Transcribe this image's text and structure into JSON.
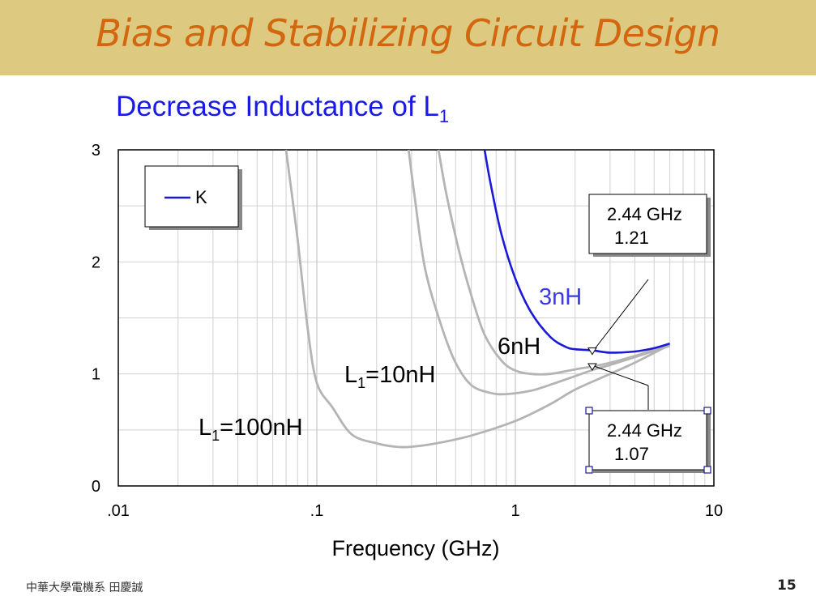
{
  "slide": {
    "title": "Bias and Stabilizing Circuit Design",
    "subtitle_main": "Decrease Inductance of L",
    "subtitle_sub": "1",
    "footer_left": "中華大學電機系 田慶誠",
    "page_number": "15"
  },
  "chart_data": {
    "type": "line",
    "xscale": "log",
    "xlim": [
      0.01,
      10
    ],
    "ylim": [
      0,
      3
    ],
    "xlabel": "Frequency (GHz)",
    "ylabel": "",
    "x_ticks": [
      0.01,
      0.1,
      1,
      10
    ],
    "x_tick_labels": [
      ".01",
      ".1",
      "1",
      "10"
    ],
    "y_ticks": [
      0,
      1,
      2,
      3
    ],
    "y_tick_labels": [
      "0",
      "1",
      "2",
      "3"
    ],
    "grid": true,
    "legend": {
      "position": "top-left",
      "entries": [
        "K"
      ]
    },
    "series": [
      {
        "name": "L1=100nH",
        "label_main": "L",
        "label_sub": "1",
        "label_rest": "=100nH",
        "color": "#b4b4b4",
        "label_color": "#000000",
        "points": [
          [
            0.07,
            3.0
          ],
          [
            0.08,
            2.2
          ],
          [
            0.09,
            1.4
          ],
          [
            0.1,
            0.92
          ],
          [
            0.12,
            0.7
          ],
          [
            0.15,
            0.46
          ],
          [
            0.2,
            0.38
          ],
          [
            0.25,
            0.35
          ],
          [
            0.3,
            0.35
          ],
          [
            0.4,
            0.38
          ],
          [
            0.6,
            0.45
          ],
          [
            1.0,
            0.58
          ],
          [
            1.5,
            0.73
          ],
          [
            2.0,
            0.86
          ],
          [
            3.0,
            1.0
          ],
          [
            4.0,
            1.1
          ],
          [
            6.0,
            1.26
          ]
        ]
      },
      {
        "name": "L1=10nH",
        "label_main": "L",
        "label_sub": "1",
        "label_rest": "=10nH",
        "color": "#b4b4b4",
        "label_color": "#000000",
        "points": [
          [
            0.29,
            3.0
          ],
          [
            0.31,
            2.6
          ],
          [
            0.35,
            1.95
          ],
          [
            0.42,
            1.45
          ],
          [
            0.5,
            1.1
          ],
          [
            0.6,
            0.9
          ],
          [
            0.75,
            0.83
          ],
          [
            0.9,
            0.82
          ],
          [
            1.2,
            0.85
          ],
          [
            1.6,
            0.92
          ],
          [
            2.0,
            0.98
          ],
          [
            2.5,
            1.04
          ],
          [
            3.0,
            1.08
          ],
          [
            4.0,
            1.15
          ],
          [
            6.0,
            1.25
          ]
        ]
      },
      {
        "name": "6nH",
        "label_main": "6nH",
        "label_sub": "",
        "label_rest": "",
        "color": "#b4b4b4",
        "label_color": "#000000",
        "points": [
          [
            0.41,
            3.0
          ],
          [
            0.45,
            2.6
          ],
          [
            0.52,
            2.1
          ],
          [
            0.6,
            1.7
          ],
          [
            0.7,
            1.35
          ],
          [
            0.85,
            1.12
          ],
          [
            1.0,
            1.03
          ],
          [
            1.2,
            1.0
          ],
          [
            1.5,
            1.0
          ],
          [
            2.0,
            1.04
          ],
          [
            2.5,
            1.07
          ],
          [
            3.0,
            1.1
          ],
          [
            4.0,
            1.16
          ],
          [
            6.0,
            1.26
          ]
        ]
      },
      {
        "name": "3nH",
        "label_main": "3nH",
        "label_sub": "",
        "label_rest": "",
        "color": "#1a1ad6",
        "label_color": "#3a3ae8",
        "points": [
          [
            0.7,
            3.0
          ],
          [
            0.75,
            2.7
          ],
          [
            0.85,
            2.25
          ],
          [
            1.0,
            1.85
          ],
          [
            1.2,
            1.55
          ],
          [
            1.5,
            1.33
          ],
          [
            1.8,
            1.24
          ],
          [
            2.0,
            1.22
          ],
          [
            2.44,
            1.21
          ],
          [
            3.0,
            1.19
          ],
          [
            4.0,
            1.2
          ],
          [
            5.0,
            1.23
          ],
          [
            6.0,
            1.27
          ]
        ]
      }
    ],
    "markers": [
      {
        "freq_label": "2.44 GHz",
        "value_label": "1.21",
        "x": 2.44,
        "y": 1.21
      },
      {
        "freq_label": "2.44 GHz",
        "value_label": "1.07",
        "x": 2.44,
        "y": 1.07
      }
    ]
  }
}
